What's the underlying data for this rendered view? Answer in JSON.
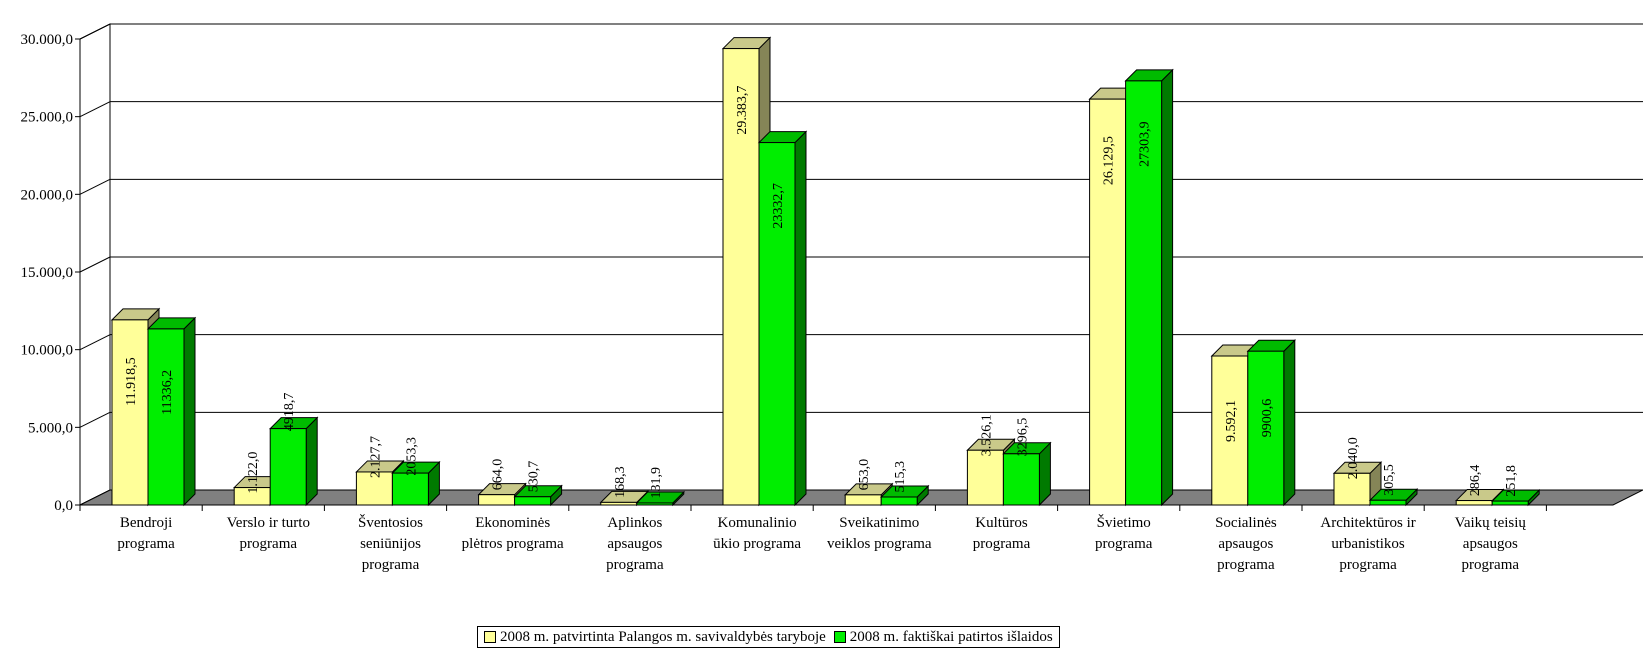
{
  "chart_data": {
    "type": "bar",
    "title": "",
    "xlabel": "",
    "ylabel": "",
    "ylim": [
      0,
      30000
    ],
    "y_ticks": [
      "0,0",
      "5.000,0",
      "10.000,0",
      "15.000,0",
      "20.000,0",
      "25.000,0",
      "30.000,0"
    ],
    "y_tick_values": [
      0,
      5000,
      10000,
      15000,
      20000,
      25000,
      30000
    ],
    "grid": true,
    "legend_position": "bottom",
    "categories": [
      [
        "Bendroji",
        "programa"
      ],
      [
        "Verslo ir turto",
        "programa"
      ],
      [
        "Šventosios",
        "seniūnijos",
        "programa"
      ],
      [
        "Ekonominės",
        "plėtros programa"
      ],
      [
        "Aplinkos",
        "apsaugos",
        "programa"
      ],
      [
        "Komunalinio",
        "ūkio programa"
      ],
      [
        "Sveikatinimo",
        "veiklos programa"
      ],
      [
        "Kultūros",
        "programa"
      ],
      [
        "Švietimo",
        "programa"
      ],
      [
        "Socialinės",
        "apsaugos",
        "programa"
      ],
      [
        "Architektūros ir",
        "urbanistikos",
        "programa"
      ],
      [
        "Vaikų teisių",
        "apsaugos",
        "programa"
      ]
    ],
    "series": [
      {
        "name": "2008 m. patvirtinta Palangos m. savivaldybės taryboje",
        "color": "#ffff99",
        "side_color": "#858557",
        "top_color": "#c9c98a",
        "values": [
          11918.5,
          1122.0,
          2127.7,
          664.0,
          168.3,
          29383.7,
          653.0,
          3526.1,
          26129.5,
          9592.1,
          2040.0,
          286.4
        ],
        "labels": [
          "11.918,5",
          "1.122,0",
          "2.127,7",
          "664,0",
          "168,3",
          "29.383,7",
          "653,0",
          "3.526,1",
          "26.129,5",
          "9.592,1",
          "2.040,0",
          "286,4"
        ]
      },
      {
        "name": "2008 m. faktiškai patirtos išlaidos",
        "color": "#00ee00",
        "side_color": "#007a00",
        "top_color": "#00bb00",
        "values": [
          11336.2,
          4918.7,
          2053.3,
          530.7,
          131.9,
          23332.7,
          515.3,
          3296.5,
          27303.9,
          9900.6,
          305.5,
          251.8
        ],
        "labels": [
          "11336,2",
          "4918,7",
          "2053,3",
          "530,7",
          "131,9",
          "23332,7",
          "515,3",
          "3296,5",
          "27303,9",
          "9900,6",
          "305,5",
          "251,8"
        ]
      }
    ],
    "floor_color": "#808080"
  }
}
